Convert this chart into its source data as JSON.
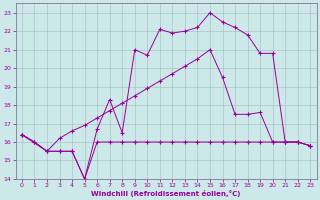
{
  "xlabel": "Windchill (Refroidissement éolien,°C)",
  "background_color": "#cde8e8",
  "grid_color": "#b0c8c8",
  "line_color": "#990099",
  "xlim": [
    -0.5,
    23.5
  ],
  "ylim": [
    14,
    23.5
  ],
  "yticks": [
    14,
    15,
    16,
    17,
    18,
    19,
    20,
    21,
    22,
    23
  ],
  "xticks": [
    0,
    1,
    2,
    3,
    4,
    5,
    6,
    7,
    8,
    9,
    10,
    11,
    12,
    13,
    14,
    15,
    16,
    17,
    18,
    19,
    20,
    21,
    22,
    23
  ],
  "line1_x": [
    0,
    1,
    2,
    3,
    4,
    5,
    6,
    7,
    8,
    9,
    10,
    11,
    12,
    13,
    14,
    15,
    16,
    17,
    18,
    19,
    20,
    21,
    22,
    23
  ],
  "line1_y": [
    16.4,
    16.0,
    15.5,
    15.5,
    15.5,
    14.0,
    16.0,
    16.0,
    16.0,
    16.0,
    16.0,
    16.0,
    16.0,
    16.0,
    16.0,
    16.0,
    16.0,
    16.0,
    16.0,
    16.0,
    16.0,
    16.0,
    16.0,
    15.8
  ],
  "line2_x": [
    0,
    2,
    3,
    4,
    5,
    6,
    7,
    8,
    9,
    10,
    11,
    12,
    13,
    14,
    15,
    16,
    17,
    18,
    19,
    20,
    21,
    22,
    23
  ],
  "line2_y": [
    16.4,
    15.5,
    16.2,
    16.6,
    16.9,
    17.3,
    17.7,
    18.1,
    18.5,
    18.9,
    19.3,
    19.7,
    20.1,
    20.5,
    21.0,
    19.5,
    17.5,
    17.5,
    17.6,
    16.0,
    16.0,
    16.0,
    15.8
  ],
  "line3_x": [
    0,
    1,
    2,
    3,
    4,
    5,
    6,
    7,
    8,
    9,
    10,
    11,
    12,
    13,
    14,
    15,
    16,
    17,
    18,
    19,
    20,
    21,
    22,
    23
  ],
  "line3_y": [
    16.4,
    16.0,
    15.5,
    15.5,
    15.5,
    14.0,
    16.7,
    18.3,
    16.5,
    21.0,
    20.7,
    22.1,
    21.9,
    22.0,
    22.2,
    23.0,
    22.5,
    22.2,
    21.8,
    20.8,
    20.8,
    16.0,
    16.0,
    15.8
  ]
}
